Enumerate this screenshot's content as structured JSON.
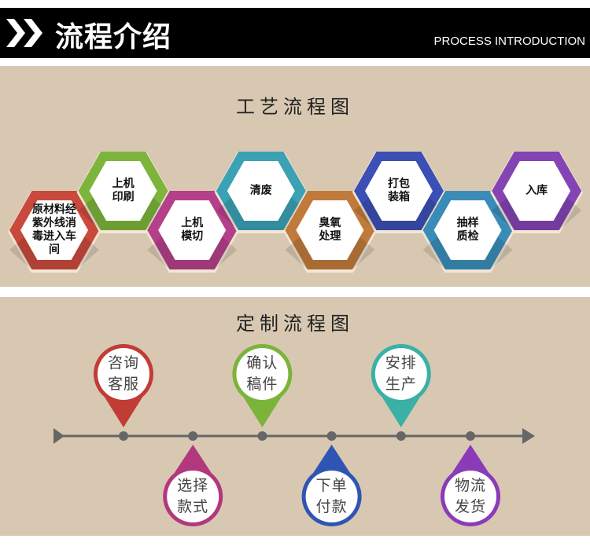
{
  "header": {
    "title": "流程介绍",
    "subtitle": "PROCESS INTRODUCTION",
    "icon": "double-chevron-right-icon"
  },
  "craft": {
    "title": "工艺流程图",
    "steps": [
      {
        "label": "原材料经紫外线消毒进入车间",
        "lines": [
          "原材料",
          "经紫外线",
          "消毒进入",
          "车间"
        ],
        "color": "#c94a3c"
      },
      {
        "label": "上机印刷",
        "lines": [
          "上机",
          "印刷"
        ],
        "color": "#7db43c"
      },
      {
        "label": "上机模切",
        "lines": [
          "上机",
          "模切"
        ],
        "color": "#b4408a"
      },
      {
        "label": "清废",
        "lines": [
          "清废"
        ],
        "color": "#3aa2b4"
      },
      {
        "label": "臭氧处理",
        "lines": [
          "臭氧",
          "处理"
        ],
        "color": "#c07a3c"
      },
      {
        "label": "打包装箱",
        "lines": [
          "打包",
          "装箱"
        ],
        "color": "#3c4fb4"
      },
      {
        "label": "抽样质检",
        "lines": [
          "抽样",
          "质检"
        ],
        "color": "#3a8cb8"
      },
      {
        "label": "入库",
        "lines": [
          "入库"
        ],
        "color": "#8444b4"
      }
    ]
  },
  "custom": {
    "title": "定制流程图",
    "steps": [
      {
        "lines": [
          "咨询",
          "客服"
        ],
        "color": "#c23c36",
        "position": "above"
      },
      {
        "lines": [
          "选择",
          "款式"
        ],
        "color": "#b2387e",
        "position": "below"
      },
      {
        "lines": [
          "确认",
          "稿件"
        ],
        "color": "#7ab43a",
        "position": "above"
      },
      {
        "lines": [
          "下单",
          "付款"
        ],
        "color": "#2f55b4",
        "position": "below"
      },
      {
        "lines": [
          "安排",
          "生产"
        ],
        "color": "#3ab0a6",
        "position": "above"
      },
      {
        "lines": [
          "物流",
          "发货"
        ],
        "color": "#8a3cb8",
        "position": "below"
      }
    ]
  }
}
